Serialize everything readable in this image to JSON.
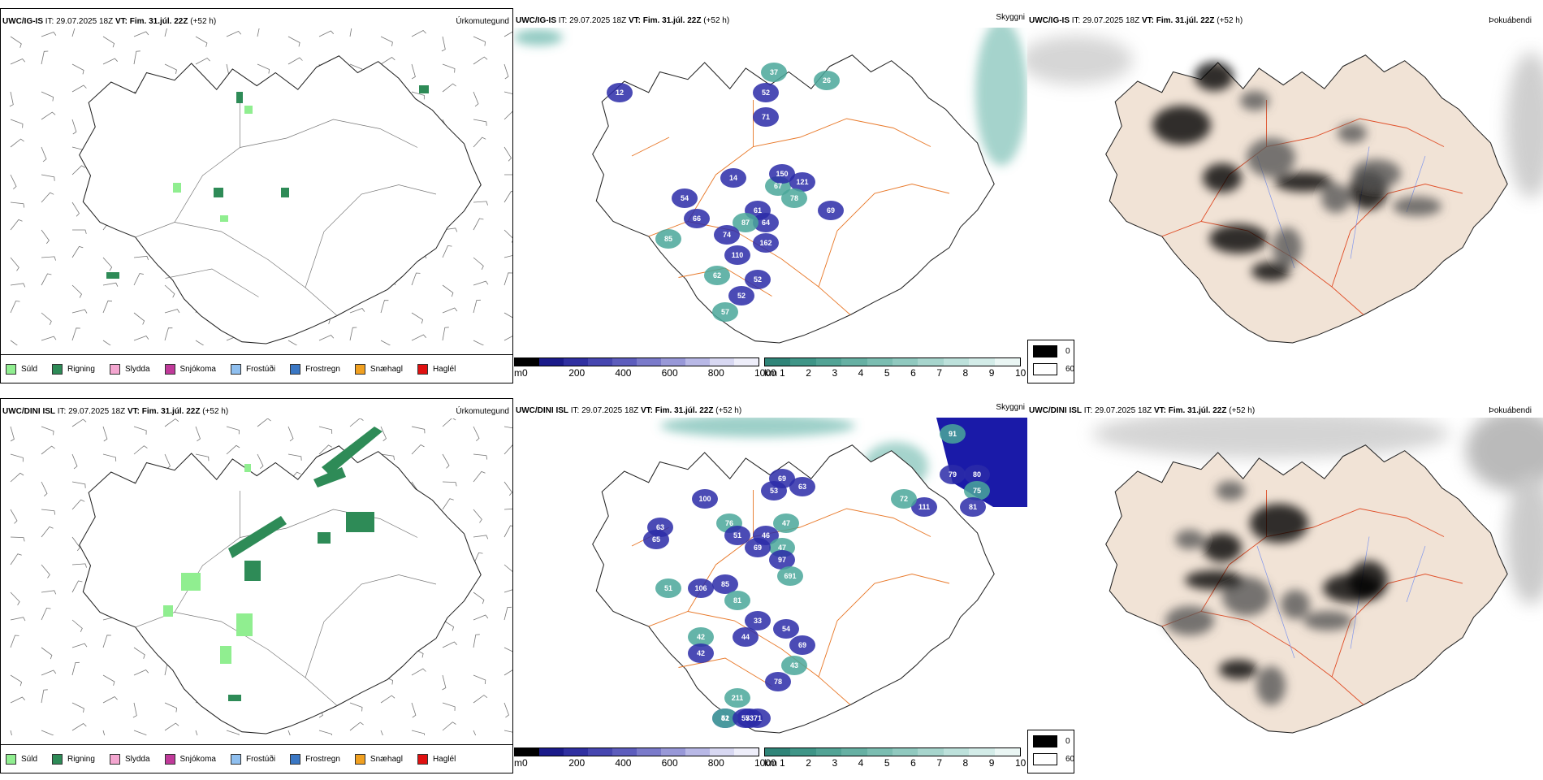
{
  "rows": [
    {
      "model": "UWC/IG-IS",
      "it_label": "IT:",
      "it_value": "29.07.2025 18Z",
      "vt_label": "VT:",
      "vt_value": "Fim. 31.júl. 22Z",
      "lead": "(+52 h)",
      "vis_numbers": [
        "37",
        "52",
        "71",
        "26",
        "14",
        "66",
        "85",
        "54",
        "61",
        "67",
        "150",
        "121",
        "78",
        "69",
        "64",
        "87",
        "162",
        "110",
        "62",
        "52",
        "52",
        "57",
        "74",
        "12"
      ]
    },
    {
      "model": "UWC/DINI ISL",
      "it_label": "IT:",
      "it_value": "29.07.2025 18Z",
      "vt_label": "VT:",
      "vt_value": "Fim. 31.júl. 22Z",
      "lead": "(+52 h)",
      "vis_numbers": [
        "91",
        "79",
        "80",
        "75",
        "81",
        "111",
        "72",
        "100",
        "53",
        "47",
        "63",
        "69",
        "76",
        "51",
        "46",
        "47",
        "69",
        "97",
        "691",
        "63",
        "65",
        "51",
        "106",
        "85",
        "81",
        "33",
        "54",
        "42",
        "42",
        "44",
        "43",
        "69",
        "78",
        "211",
        "51",
        "73",
        "42",
        "55",
        "71"
      ]
    }
  ],
  "panel_titles": {
    "type": "Úrkomutegund",
    "vis": "Skyggni",
    "fog": "Þokuábendi"
  },
  "precip_types": [
    {
      "label": "Súld",
      "color": "#90ee90"
    },
    {
      "label": "Rigning",
      "color": "#2e8b57"
    },
    {
      "label": "Slydda",
      "color": "#f4a6d0"
    },
    {
      "label": "Snjókoma",
      "color": "#c03a9a"
    },
    {
      "label": "Frostúði",
      "color": "#8fbfef"
    },
    {
      "label": "Frostregn",
      "color": "#3a77c4"
    },
    {
      "label": "Snæhagl",
      "color": "#f0a020"
    },
    {
      "label": "Haglél",
      "color": "#e01010"
    }
  ],
  "cbar_m": {
    "unit": "m",
    "ticks": [
      "0",
      "200",
      "400",
      "600",
      "800",
      "1000"
    ]
  },
  "cbar_km": {
    "unit": "km",
    "ticks": [
      "1",
      "2",
      "3",
      "4",
      "5",
      "6",
      "7",
      "8",
      "9",
      "10"
    ]
  },
  "fog_legend": {
    "high": "0",
    "low": "60"
  },
  "colors": {
    "rain": "#2e8b57",
    "drizzle": "#90ee90",
    "vis_blue": "#2b2ba8",
    "vis_teal": "#4aa79a",
    "land": "#f1e3d6",
    "roads": "#e8792a",
    "rivers": "#7f95ee"
  }
}
